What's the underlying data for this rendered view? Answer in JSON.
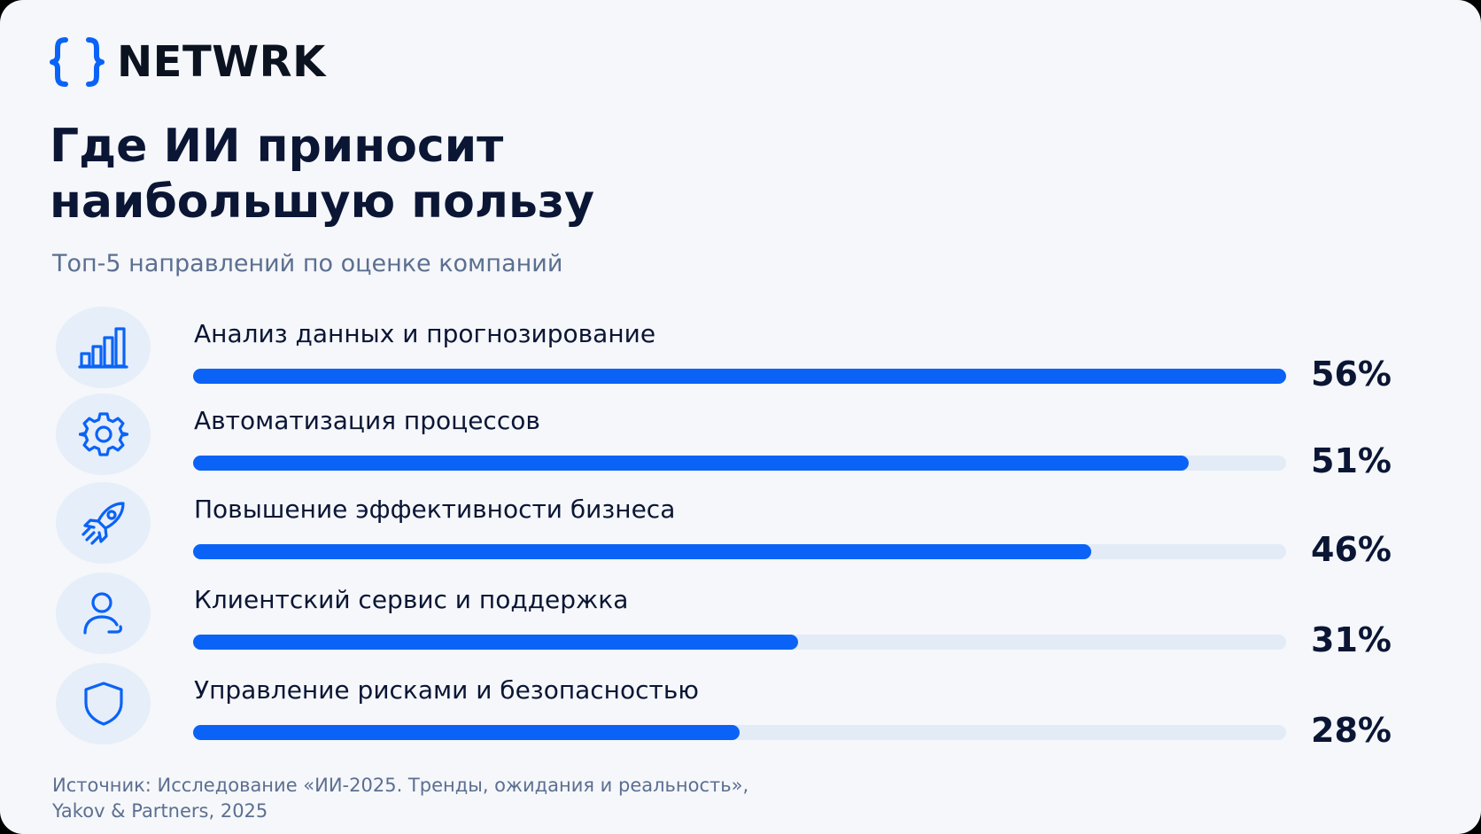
{
  "brand": {
    "name": "NETWRK",
    "logo_icon": "curly-braces-icon",
    "accent_color": "#0A63F6"
  },
  "title_lines": [
    "Где ИИ приносит",
    "наибольшую пользу"
  ],
  "subtitle": "Топ-5 направлений по оценке компаний",
  "source_lines": [
    "Источник: Исследование «ИИ-2025. Тренды, ожидания и реальность»,",
    "Yakov & Partners, 2025"
  ],
  "chart_data": {
    "type": "bar",
    "orientation": "horizontal",
    "categories": [
      "Анализ данных и прогнозирование",
      "Автоматизация процессов",
      "Повышение эффективности бизнеса",
      "Клиентский сервис и поддержка",
      "Управление рисками и безопасностью"
    ],
    "values": [
      56,
      51,
      46,
      31,
      28
    ],
    "value_labels": [
      "56%",
      "51%",
      "46%",
      "31%",
      "28%"
    ],
    "icons": [
      "bar-chart-icon",
      "gear-icon",
      "rocket-icon",
      "user-icon",
      "shield-icon"
    ],
    "bar_color": "#0A63F6",
    "track_color": "#E3EBF6",
    "grid": false,
    "legend": "none"
  }
}
